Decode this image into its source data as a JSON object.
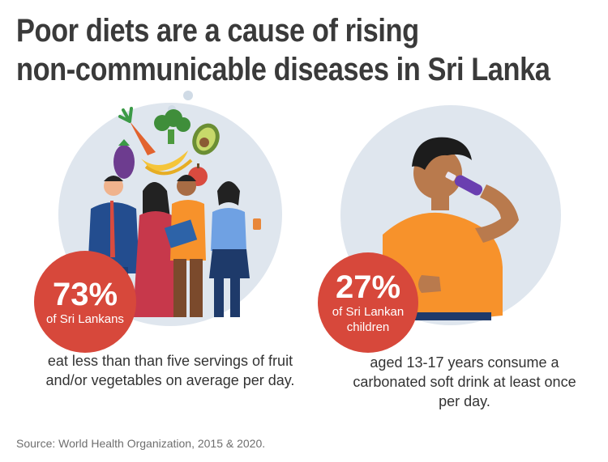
{
  "title": {
    "line1": "Poor diets are a cause of rising",
    "line2": "non-communicable diseases in Sri Lanka"
  },
  "left": {
    "percent": "73%",
    "label": "of Sri Lankans",
    "description": "eat less than than five servings of fruit and/or vegetables on average per day."
  },
  "right": {
    "percent": "27%",
    "label_line1": "of Sri Lankan",
    "label_line2": "children",
    "description": "aged 13-17 years consume a carbonated soft drink at least once per day."
  },
  "source": "Source: World Health Organization, 2015 & 2020.",
  "colors": {
    "badge": "#d7483b",
    "circle": "#dfe6ee",
    "title": "#3a3a3a",
    "orange_shirt": "#f7922b"
  }
}
